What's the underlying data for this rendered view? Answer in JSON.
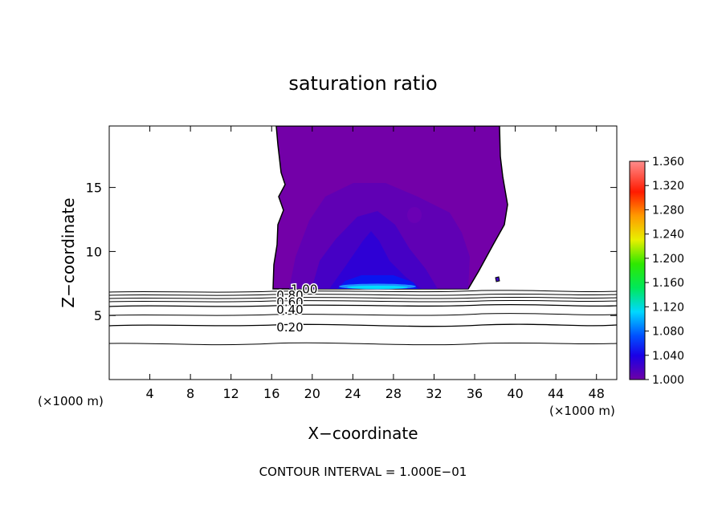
{
  "chart_data": {
    "type": "heatmap",
    "title": "saturation ratio",
    "xlabel": "X−coordinate",
    "ylabel": "Z−coordinate",
    "x_unit_left": "(×1000 m)",
    "x_unit_right": "(×1000 m)",
    "xlim": [
      0,
      50
    ],
    "ylim": [
      0,
      19.8
    ],
    "x_ticks": [
      4,
      8,
      12,
      16,
      20,
      24,
      28,
      32,
      36,
      40,
      44,
      48
    ],
    "y_ticks": [
      5,
      10,
      15
    ],
    "contour_interval_text": "CONTOUR INTERVAL = 1.000E−01",
    "colorbar": {
      "labels": [
        "1.360",
        "1.320",
        "1.280",
        "1.240",
        "1.200",
        "1.160",
        "1.120",
        "1.080",
        "1.040",
        "1.000"
      ],
      "min": 1.0,
      "max": 1.36
    },
    "contour_labels": [
      {
        "text": "1.00",
        "x": 19.2,
        "z": 7.1
      },
      {
        "text": "0.80",
        "x": 17.8,
        "z": 6.65
      },
      {
        "text": "0.60",
        "x": 17.8,
        "z": 6.1
      },
      {
        "text": "0.40",
        "x": 17.8,
        "z": 5.5
      },
      {
        "text": "0.20",
        "x": 17.8,
        "z": 4.15
      }
    ]
  }
}
